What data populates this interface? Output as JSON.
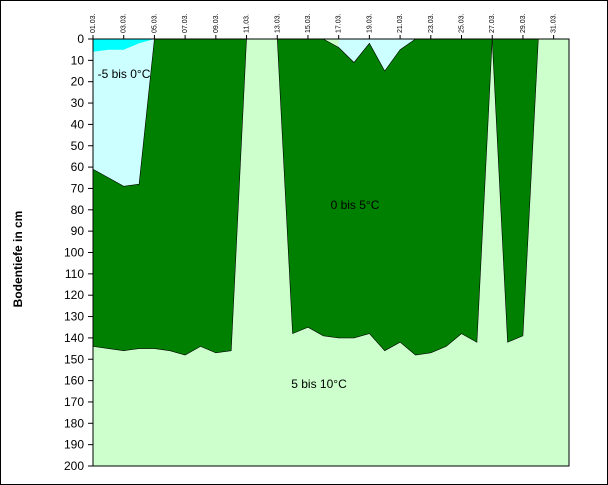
{
  "chart_data": {
    "type": "area",
    "title": "",
    "xlabel": "",
    "ylabel": "Bodentiefe in cm",
    "x_ticks": [
      "01.03.",
      "03.03.",
      "05.03.",
      "07.03.",
      "09.03.",
      "11.03.",
      "13.03.",
      "15.03.",
      "17.03.",
      "19.03.",
      "21.03.",
      "23.03.",
      "25.03.",
      "27.03.",
      "29.03.",
      "31.03."
    ],
    "y_ticks": [
      0,
      10,
      20,
      30,
      40,
      50,
      60,
      70,
      80,
      90,
      100,
      110,
      120,
      130,
      140,
      150,
      160,
      170,
      180,
      190,
      200
    ],
    "ylim": [
      0,
      200
    ],
    "y_inverted": true,
    "x_range_days": [
      1,
      32
    ],
    "grid": false,
    "colors": {
      "plot_background": "#ccffcc",
      "frost_light": "#ccffff",
      "frost_dark": "#00ffff",
      "zero_to_five": "#008000",
      "outline": "#000000"
    },
    "series": [
      {
        "name": "-5 bis 0°C",
        "points": [
          [
            1,
            0
          ],
          [
            2,
            0
          ],
          [
            3,
            0
          ],
          [
            4,
            0
          ],
          [
            5,
            0
          ],
          [
            6,
            0
          ],
          [
            17,
            0
          ],
          [
            18,
            0
          ],
          [
            19,
            0
          ],
          [
            20,
            0
          ],
          [
            21,
            0
          ],
          [
            22,
            0
          ]
        ]
      },
      {
        "name": "0 bis 5°C",
        "points": [
          [
            1,
            61
          ],
          [
            2,
            65
          ],
          [
            3,
            69
          ],
          [
            4,
            68
          ],
          [
            5,
            0
          ],
          [
            6,
            0
          ],
          [
            7,
            0
          ],
          [
            8,
            0
          ],
          [
            9,
            0
          ],
          [
            10,
            0
          ],
          [
            11,
            0
          ],
          [
            15,
            0
          ],
          [
            16,
            0
          ],
          [
            17,
            4
          ],
          [
            18,
            11
          ],
          [
            19,
            2
          ],
          [
            20,
            15
          ],
          [
            21,
            5
          ],
          [
            22,
            0
          ],
          [
            23,
            0
          ],
          [
            24,
            0
          ],
          [
            25,
            0
          ],
          [
            26,
            0
          ],
          [
            27,
            0
          ],
          [
            28,
            0
          ],
          [
            29,
            0
          ],
          [
            30,
            0
          ]
        ]
      },
      {
        "name": "5 bis 10°C",
        "points": [
          [
            1,
            144
          ],
          [
            2,
            145
          ],
          [
            3,
            146
          ],
          [
            4,
            145
          ],
          [
            5,
            145
          ],
          [
            6,
            146
          ],
          [
            7,
            148
          ],
          [
            8,
            144
          ],
          [
            9,
            147
          ],
          [
            10,
            146
          ],
          [
            11,
            0
          ],
          [
            13,
            0
          ],
          [
            14,
            138
          ],
          [
            15,
            135
          ],
          [
            16,
            139
          ],
          [
            17,
            140
          ],
          [
            18,
            140
          ],
          [
            19,
            138
          ],
          [
            20,
            146
          ],
          [
            21,
            142
          ],
          [
            22,
            148
          ],
          [
            23,
            147
          ],
          [
            24,
            144
          ],
          [
            25,
            138
          ],
          [
            26,
            142
          ],
          [
            27,
            0
          ],
          [
            28,
            142
          ],
          [
            29,
            139
          ],
          [
            30,
            0
          ]
        ]
      }
    ],
    "region_labels": [
      "-5 bis 0°C",
      "0 bis 5°C",
      "5 bis 10°C"
    ],
    "frost_dark_cap": {
      "depths": [
        [
          1,
          6
        ],
        [
          2,
          5
        ],
        [
          3,
          5
        ],
        [
          4,
          2
        ],
        [
          5,
          0
        ]
      ]
    }
  }
}
